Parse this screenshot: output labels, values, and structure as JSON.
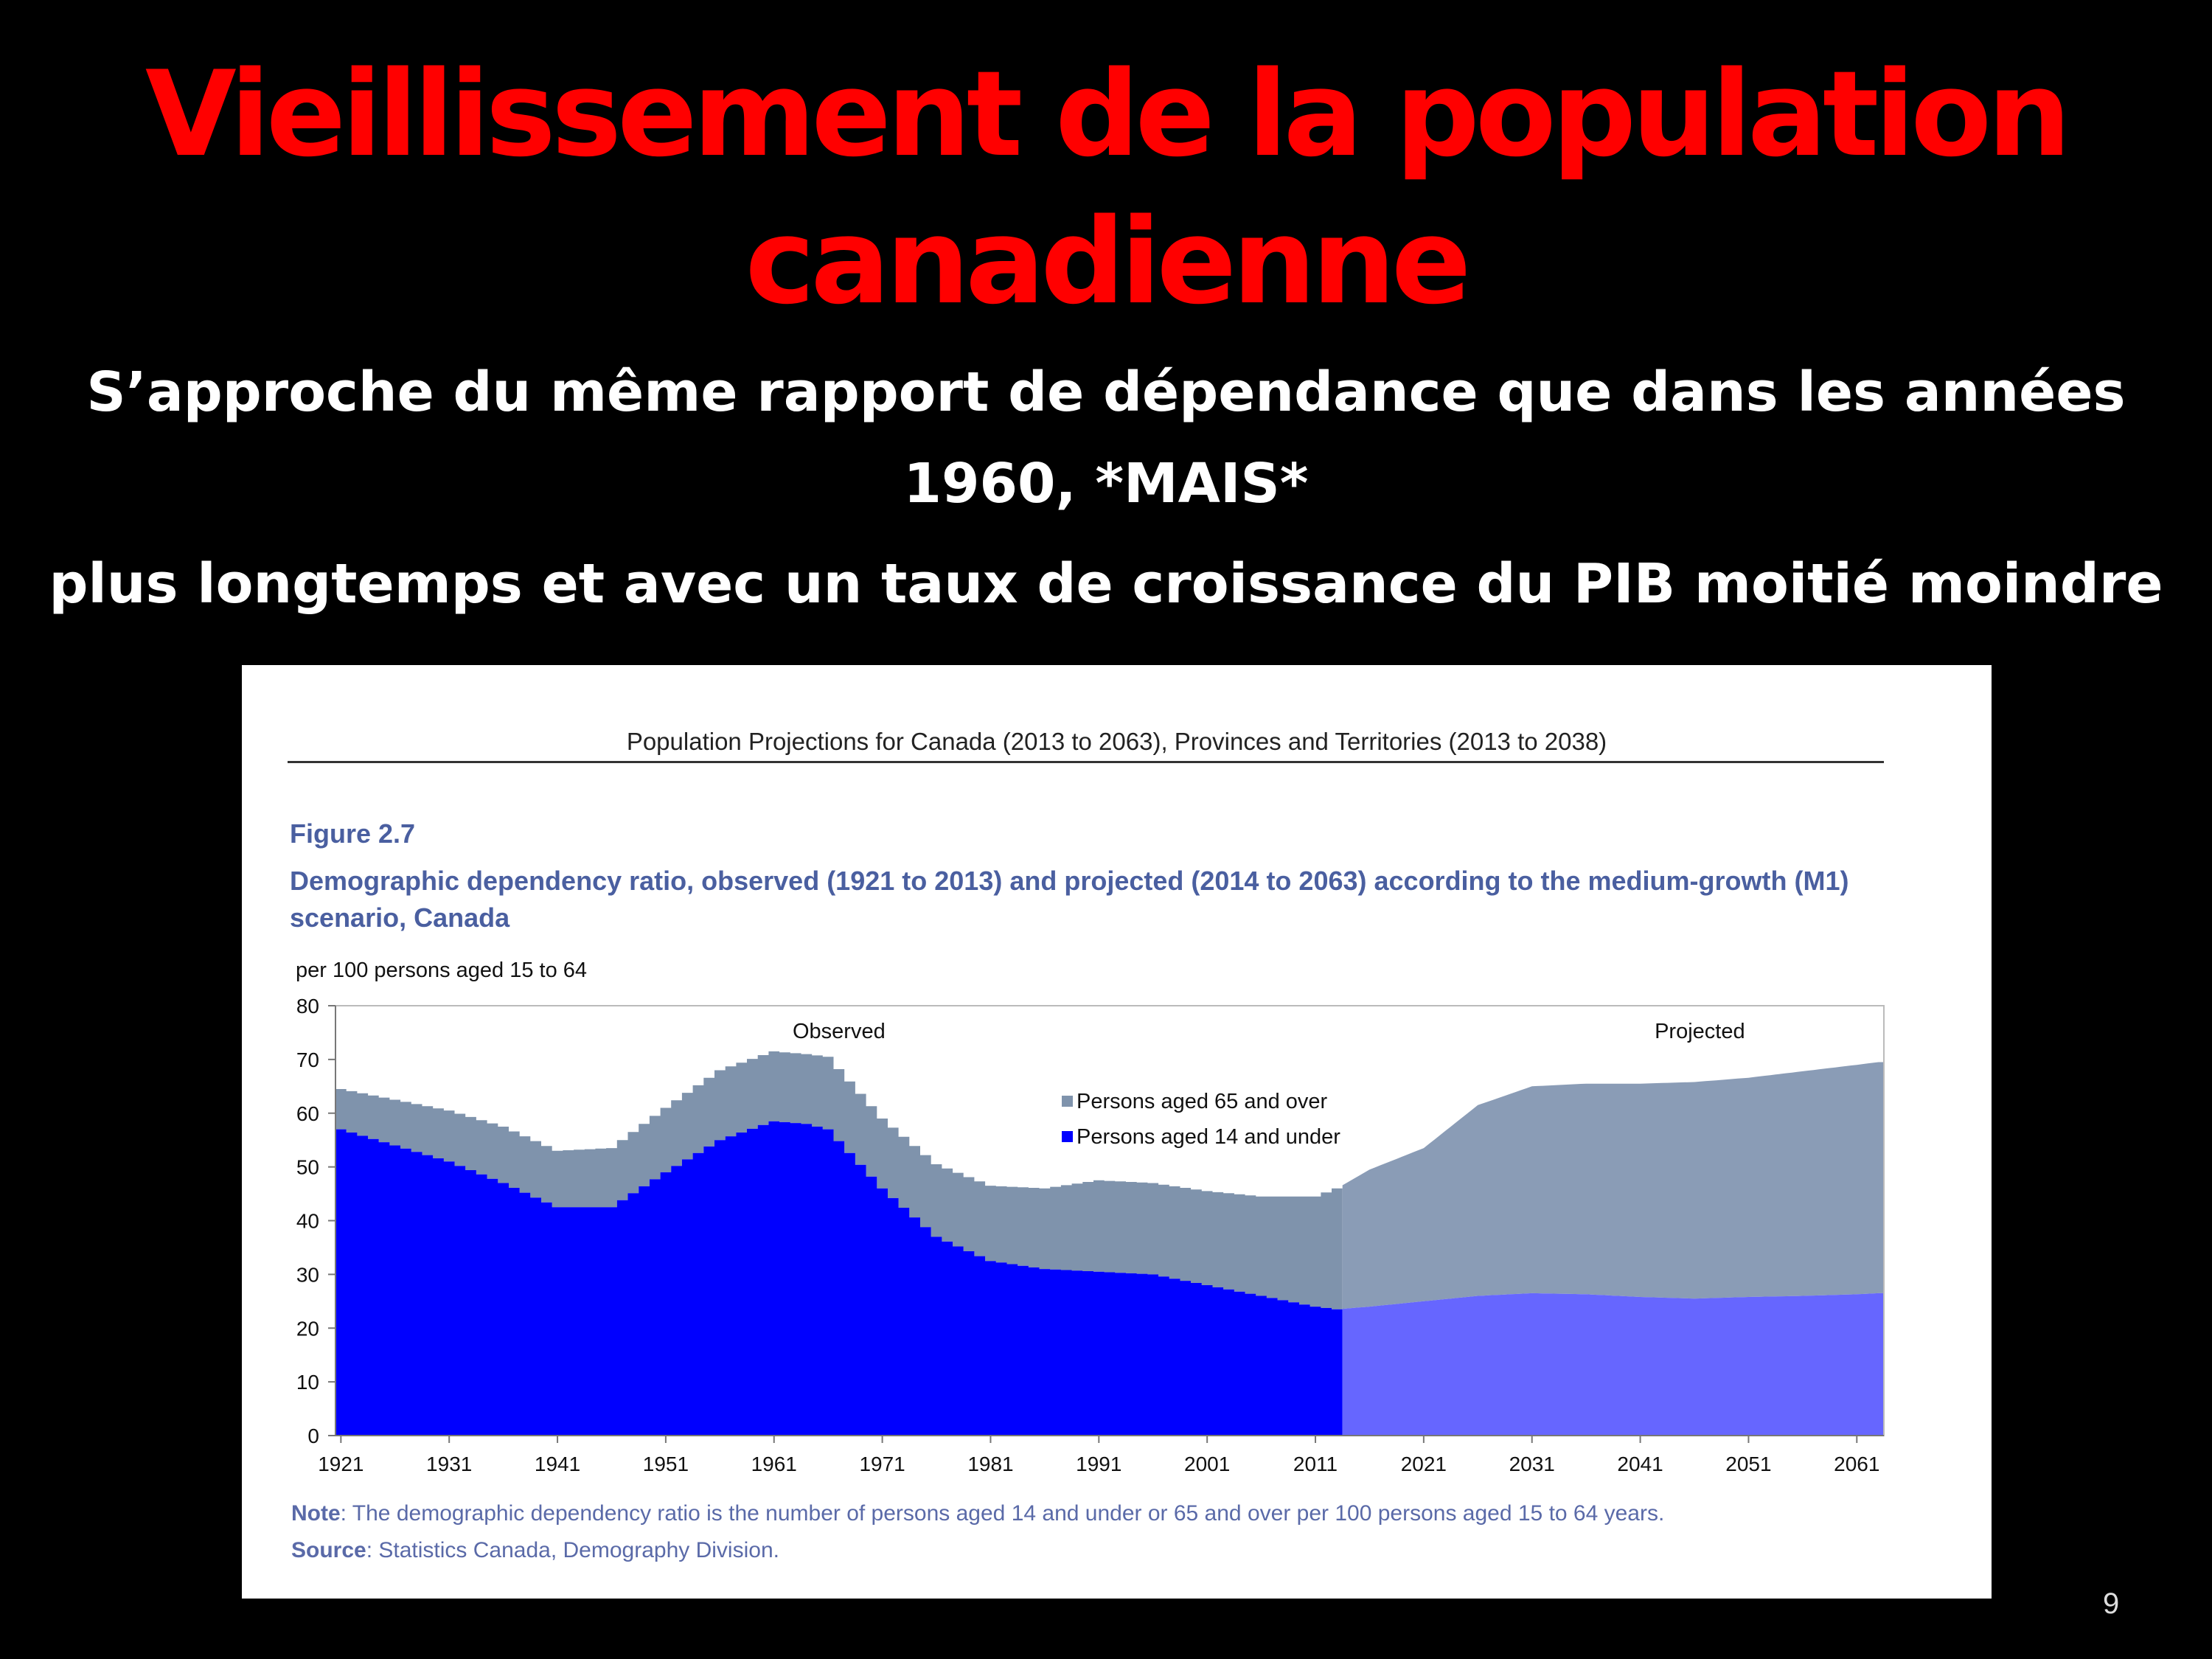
{
  "slide": {
    "title": "Vieillissement de la population canadienne",
    "subtitle1": "S’approche du même rapport de dépendance que dans les années 1960, *MAIS*",
    "subtitle2": "plus longtemps et avec un taux de croissance du PIB moitié moindre",
    "page_number": "9"
  },
  "figure": {
    "source_header": "Population Projections for Canada (2013 to 2063), Provinces and Territories (2013 to 2038)",
    "label": "Figure 2.7",
    "title": "Demographic dependency ratio, observed (1921 to 2013) and projected (2014 to 2063) according to the medium-growth (M1) scenario, Canada",
    "note_label": "Note",
    "note_text": ": The demographic dependency ratio is the number of persons aged 14 and under or 65 and over per 100 persons aged 15 to 64 years.",
    "source_label": "Source",
    "source_text": ": Statistics Canada, Demography Division."
  },
  "chart_data": {
    "type": "area",
    "stacked": true,
    "ylabel": "per 100 persons aged 15 to 64",
    "ylim": [
      0,
      80
    ],
    "yticks": [
      0,
      10,
      20,
      30,
      40,
      50,
      60,
      70,
      80
    ],
    "xticks": [
      1921,
      1931,
      1941,
      1951,
      1961,
      1971,
      1981,
      1991,
      2001,
      2011,
      2021,
      2031,
      2041,
      2051,
      2061
    ],
    "xlim": [
      1920.5,
      2063.5
    ],
    "split_year": 2013.5,
    "annotations": [
      "Observed",
      "Projected"
    ],
    "legend_position": "center",
    "x": [
      1921,
      1926,
      1931,
      1936,
      1941,
      1946,
      1951,
      1956,
      1961,
      1964,
      1966,
      1971,
      1976,
      1981,
      1986,
      1991,
      1996,
      2001,
      2006,
      2011,
      2013,
      2016,
      2021,
      2026,
      2031,
      2036,
      2041,
      2046,
      2051,
      2056,
      2061,
      2063
    ],
    "series": [
      {
        "name": "Persons aged 14 and under",
        "color": "#0000ff",
        "projected_color": "#6666ff",
        "values": [
          57,
          54,
          51,
          47,
          42.5,
          42.5,
          49,
          55,
          58.5,
          58,
          57,
          46,
          37,
          32.5,
          31,
          30.5,
          30,
          28,
          26,
          24,
          23.5,
          24,
          25,
          26,
          26.5,
          26.3,
          25.8,
          25.5,
          25.8,
          26,
          26.3,
          26.5
        ]
      },
      {
        "name": "Persons aged 65 and over",
        "color": "#7f93ac",
        "projected_color": "#8a9cb6",
        "values": [
          7.5,
          8.5,
          9.5,
          10.5,
          10.5,
          11,
          12,
          13,
          13,
          13,
          13.5,
          13,
          13.5,
          14,
          15,
          17,
          17,
          17.5,
          18.5,
          20.5,
          22.5,
          25.5,
          28.5,
          35.5,
          38.5,
          39.2,
          39.7,
          40.3,
          40.8,
          41.8,
          42.7,
          43
        ]
      }
    ]
  }
}
